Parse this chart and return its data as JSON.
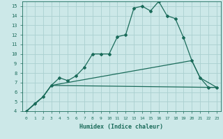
{
  "xlabel": "Humidex (Indice chaleur)",
  "background_color": "#cce8e8",
  "grid_color": "#aad0d0",
  "line_color": "#1a6b5a",
  "xlim": [
    -0.5,
    23.5
  ],
  "ylim": [
    4,
    15.5
  ],
  "xticks": [
    0,
    1,
    2,
    3,
    4,
    5,
    6,
    7,
    8,
    9,
    10,
    11,
    12,
    13,
    14,
    15,
    16,
    17,
    18,
    19,
    20,
    21,
    22,
    23
  ],
  "yticks": [
    4,
    5,
    6,
    7,
    8,
    9,
    10,
    11,
    12,
    13,
    14,
    15
  ],
  "line1_x": [
    0,
    1,
    2,
    3,
    4,
    5,
    6,
    7,
    8,
    9,
    10,
    11,
    12,
    13,
    14,
    15,
    16,
    17,
    18,
    19,
    20,
    21,
    22,
    23
  ],
  "line1_y": [
    4.0,
    4.8,
    5.5,
    6.7,
    7.5,
    7.2,
    7.7,
    8.6,
    10.0,
    10.0,
    10.0,
    11.8,
    12.0,
    14.8,
    15.0,
    14.5,
    15.5,
    14.0,
    13.7,
    11.7,
    9.3,
    7.5,
    6.5,
    6.5
  ],
  "line2_x": [
    0,
    2,
    3,
    20,
    21,
    23
  ],
  "line2_y": [
    4.0,
    5.5,
    6.7,
    9.3,
    7.5,
    6.5
  ],
  "line3_x": [
    0,
    2,
    3,
    22,
    23
  ],
  "line3_y": [
    4.0,
    5.5,
    6.7,
    6.5,
    6.5
  ]
}
